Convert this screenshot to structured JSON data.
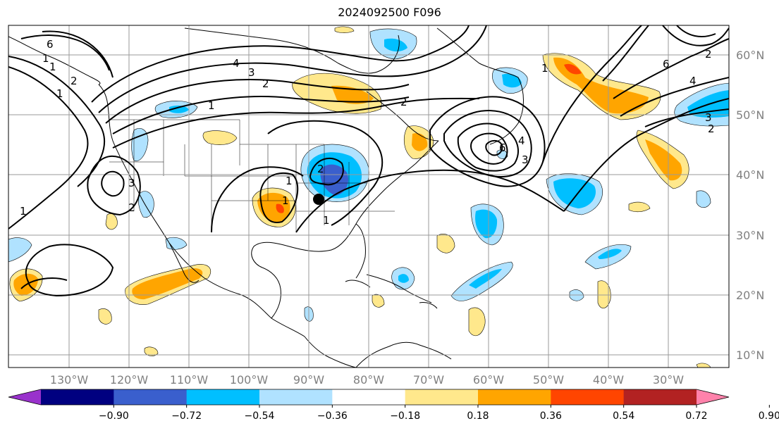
{
  "title": "2024092500 F096",
  "map": {
    "lat_ticks": [
      "60°N",
      "50°N",
      "40°N",
      "30°N",
      "20°N",
      "10°N"
    ],
    "lon_ticks": [
      "130°W",
      "120°W",
      "110°W",
      "100°W",
      "90°W",
      "80°W",
      "70°W",
      "60°W",
      "50°W",
      "40°W",
      "30°W"
    ],
    "contour_labels": [
      "6",
      "4",
      "3",
      "2",
      "1",
      "2",
      "6",
      "4",
      "3",
      "2",
      "1",
      "1",
      "2",
      "6",
      "4",
      "3",
      "2",
      "1",
      "1",
      "2",
      "3",
      "1",
      "1",
      "2",
      "1",
      "1"
    ],
    "fill_colors": {
      "neg_090": "#9932CC",
      "neg_072": "#000080",
      "neg_054": "#3A5FCD",
      "neg_036": "#00BFFF",
      "neg_018": "#B0E2FF",
      "pos_018": "#FFE88C",
      "pos_036": "#FFA500",
      "pos_054": "#FF4500",
      "pos_072": "#B22222",
      "pos_090": "#FF82AB"
    }
  },
  "colorbar": {
    "tick_labels": [
      "−0.90",
      "−0.72",
      "−0.54",
      "−0.36",
      "−0.18",
      "0.18",
      "0.36",
      "0.54",
      "0.72",
      "0.90"
    ],
    "colors": [
      "#9932CC",
      "#000080",
      "#3A5FCD",
      "#00BFFF",
      "#B0E2FF",
      "#FFFFFF",
      "#FFE88C",
      "#FFA500",
      "#FF4500",
      "#B22222",
      "#FF82AB"
    ]
  }
}
